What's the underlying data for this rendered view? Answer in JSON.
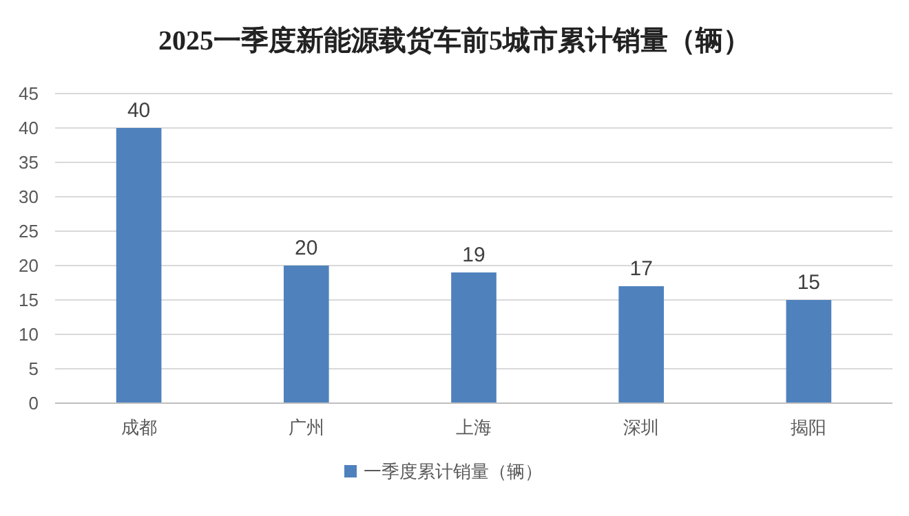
{
  "chart_data": {
    "type": "bar",
    "title": "2025一季度新能源载货车前5城市累计销量（辆）",
    "categories": [
      "成都",
      "广州",
      "上海",
      "深圳",
      "揭阳"
    ],
    "series": [
      {
        "name": "一季度累计销量（辆）",
        "color": "#4f81bd",
        "values": [
          40,
          20,
          19,
          17,
          15
        ]
      }
    ],
    "ylim": [
      0,
      45
    ],
    "yticks": [
      0,
      5,
      10,
      15,
      20,
      25,
      30,
      35,
      40,
      45
    ],
    "grid": "y",
    "legend": "bottom",
    "data_labels": true
  }
}
